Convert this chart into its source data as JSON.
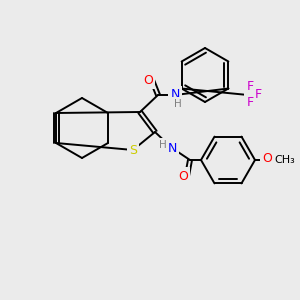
{
  "background_color": "#ebebeb",
  "bond_color": "#000000",
  "atom_colors": {
    "S": "#cccc00",
    "N": "#0000ff",
    "O": "#ff0000",
    "F": "#cc00cc",
    "H": "#7f7f7f",
    "C": "#000000"
  },
  "figsize": [
    3.0,
    3.0
  ],
  "dpi": 100
}
